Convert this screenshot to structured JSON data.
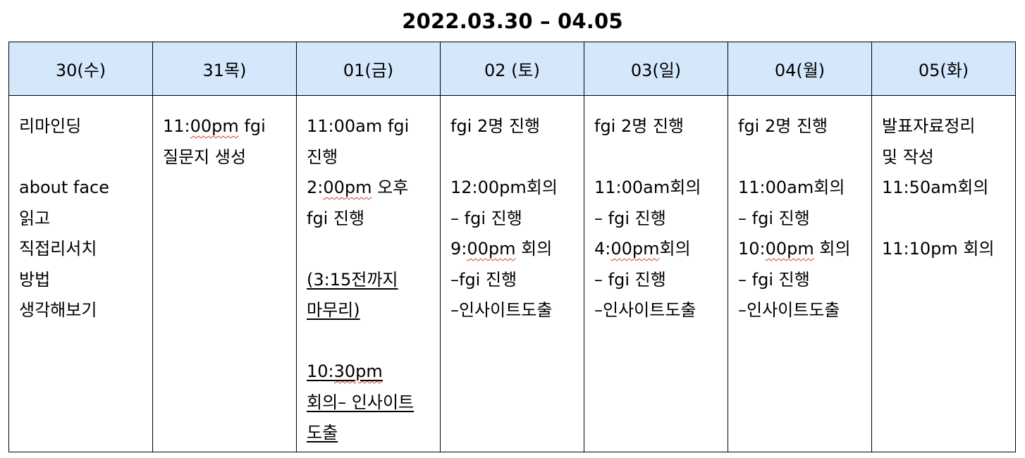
{
  "title": "2022.03.30 – 04.05",
  "columns": [
    {
      "header": "30(수)",
      "lines": [
        {
          "text": "리마인딩"
        },
        {
          "text": ""
        },
        {
          "text": "about face"
        },
        {
          "text": "읽고"
        },
        {
          "text": "직접리서치"
        },
        {
          "text": "방법"
        },
        {
          "text": "생각해보기"
        }
      ]
    },
    {
      "header": "31목)",
      "lines": [
        {
          "text": "11:00pm fgi",
          "squig": "00pm",
          "pre": "11:",
          "post": " fgi"
        },
        {
          "text": "질문지 생성"
        }
      ]
    },
    {
      "header": "01(금)",
      "lines": [
        {
          "text": "11:00am  fgi"
        },
        {
          "text": "진행"
        },
        {
          "text": "2:00pm 오후",
          "squig": "00pm",
          "pre": "2:",
          "post": " 오후"
        },
        {
          "text": "fgi 진행"
        },
        {
          "text": ""
        },
        {
          "text": "(3:15전까지",
          "under": true
        },
        {
          "text": "마무리)",
          "under": true
        },
        {
          "text": ""
        },
        {
          "text": "10:30pm",
          "under": true,
          "squig": "30pm",
          "pre": "10:",
          "post": ""
        },
        {
          "text": "회의– 인사이트",
          "under": true
        },
        {
          "text": "도출",
          "under": true
        }
      ]
    },
    {
      "header": "02 (토)",
      "lines": [
        {
          "text": "fgi 2명 진행"
        },
        {
          "text": ""
        },
        {
          "text": "12:00pm회의"
        },
        {
          "text": "– fgi 진행"
        },
        {
          "text": "9:00pm 회의",
          "squig": "00pm",
          "pre": "9:",
          "post": " 회의"
        },
        {
          "text": "–fgi 진행"
        },
        {
          "text": "–인사이트도출"
        }
      ]
    },
    {
      "header": "03(일)",
      "lines": [
        {
          "text": "fgi 2명 진행"
        },
        {
          "text": ""
        },
        {
          "text": "11:00am회의"
        },
        {
          "text": "– fgi 진행"
        },
        {
          "text": "4:00pm회의",
          "squig": "00pm",
          "pre": "4:",
          "post": "회의"
        },
        {
          "text": "– fgi 진행"
        },
        {
          "text": "–인사이트도출"
        }
      ]
    },
    {
      "header": "04(월)",
      "lines": [
        {
          "text": "fgi 2명 진행"
        },
        {
          "text": ""
        },
        {
          "text": "11:00am회의"
        },
        {
          "text": "– fgi 진행"
        },
        {
          "text": "10:00pm 회의",
          "squig": "00pm",
          "pre": "10:",
          "post": " 회의"
        },
        {
          "text": "– fgi 진행"
        },
        {
          "text": "–인사이트도출"
        }
      ]
    },
    {
      "header": "05(화)",
      "lines": [
        {
          "text": "발표자료정리"
        },
        {
          "text": "및 작성"
        },
        {
          "text": "11:50am회의"
        },
        {
          "text": ""
        },
        {
          "text": "11:10pm 회의"
        }
      ]
    }
  ]
}
